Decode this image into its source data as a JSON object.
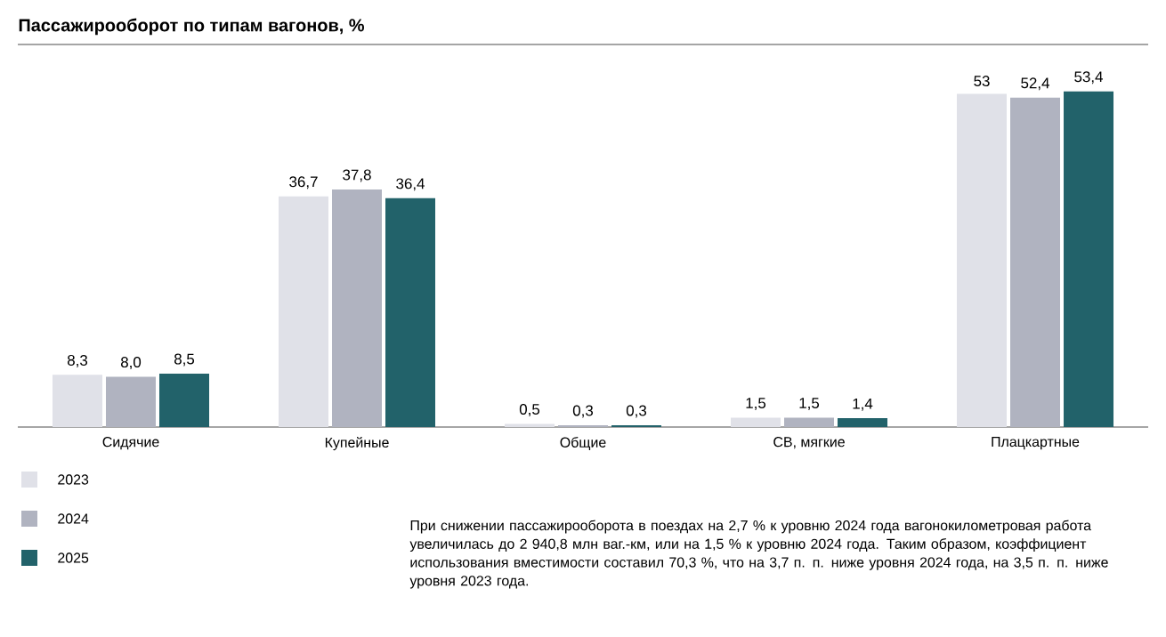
{
  "chart_data": {
    "type": "bar",
    "title": "Пассажирооборот по типам вагонов, %",
    "categories": [
      "Сидячие",
      "Купейные",
      "Общие",
      "СВ, мягкие",
      "Плацкартные"
    ],
    "series": [
      {
        "name": "2023",
        "color": "#e0e1e8",
        "values": [
          8.3,
          36.7,
          0.5,
          1.5,
          53
        ],
        "value_labels": [
          "8,3",
          "36,7",
          "0,5",
          "1,5",
          "53"
        ]
      },
      {
        "name": "2024",
        "color": "#b0b3c0",
        "values": [
          8.0,
          37.8,
          0.3,
          1.5,
          52.4
        ],
        "value_labels": [
          "8,0",
          "37,8",
          "0,3",
          "1,5",
          "52,4"
        ]
      },
      {
        "name": "2025",
        "color": "#22626a",
        "values": [
          8.5,
          36.4,
          0.3,
          1.4,
          53.4
        ],
        "value_labels": [
          "8,5",
          "36,4",
          "0,3",
          "1,4",
          "53,4"
        ]
      }
    ],
    "legend": "bottom left",
    "annotations": [
      "При снижении пассажирооборота в поездах на 2,7 % к уровню 2024 года вагонокилометровая работа увеличилась до 2 940,8 млн ваг.-км, или на 1,5 % к уровню 2024 года. Таким образом, коэффициент использования вместимости составил 70,3 %, что на 3,7 п. п. ниже уровня 2024 года, на 3,5 п. п. ниже уровня 2023 года."
    ]
  }
}
